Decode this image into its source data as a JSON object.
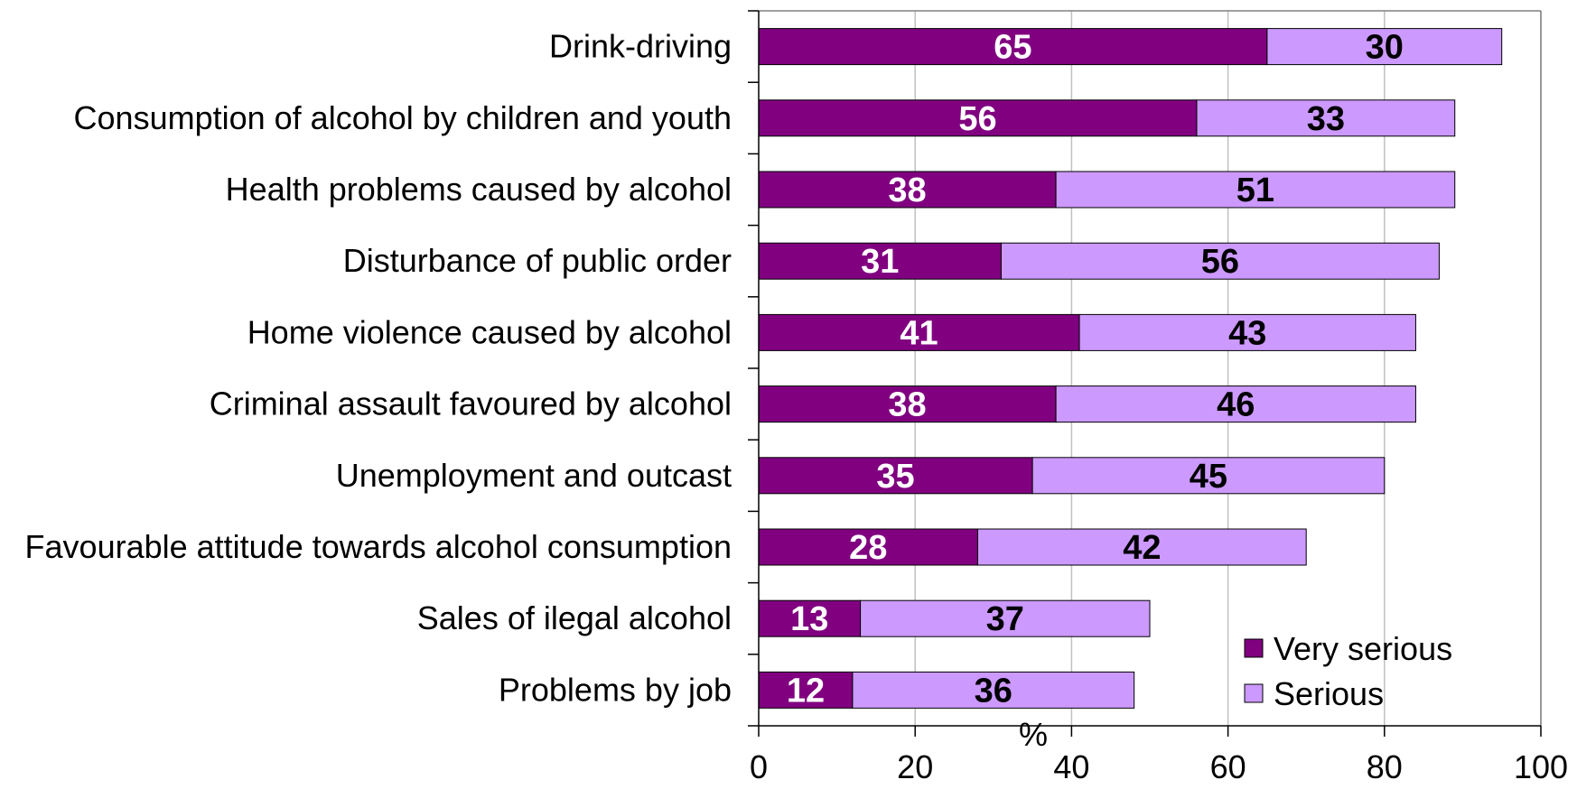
{
  "chart_data": {
    "type": "bar",
    "orientation": "horizontal",
    "stacked": true,
    "categories": [
      "Drink-driving",
      "Consumption of alcohol by children and youth",
      "Health problems caused by alcohol",
      "Disturbance of public order",
      "Home violence caused by alcohol",
      "Criminal assault favoured by alcohol",
      "Unemployment and outcast",
      "Favourable attitude towards alcohol consumption",
      "Sales of ilegal alcohol",
      "Problems by job"
    ],
    "series": [
      {
        "name": "Very serious",
        "color": "#800080",
        "label_color": "#ffffff",
        "values": [
          65,
          56,
          38,
          31,
          41,
          38,
          35,
          28,
          13,
          12
        ]
      },
      {
        "name": "Serious",
        "color": "#cc99ff",
        "label_color": "#000000",
        "values": [
          30,
          33,
          51,
          56,
          43,
          46,
          45,
          42,
          37,
          36
        ]
      }
    ],
    "xlabel": "%",
    "xlim": [
      0,
      100
    ],
    "xticks": [
      0,
      20,
      40,
      60,
      80,
      100
    ],
    "grid": "vertical",
    "legend_position": "bottom-right"
  }
}
